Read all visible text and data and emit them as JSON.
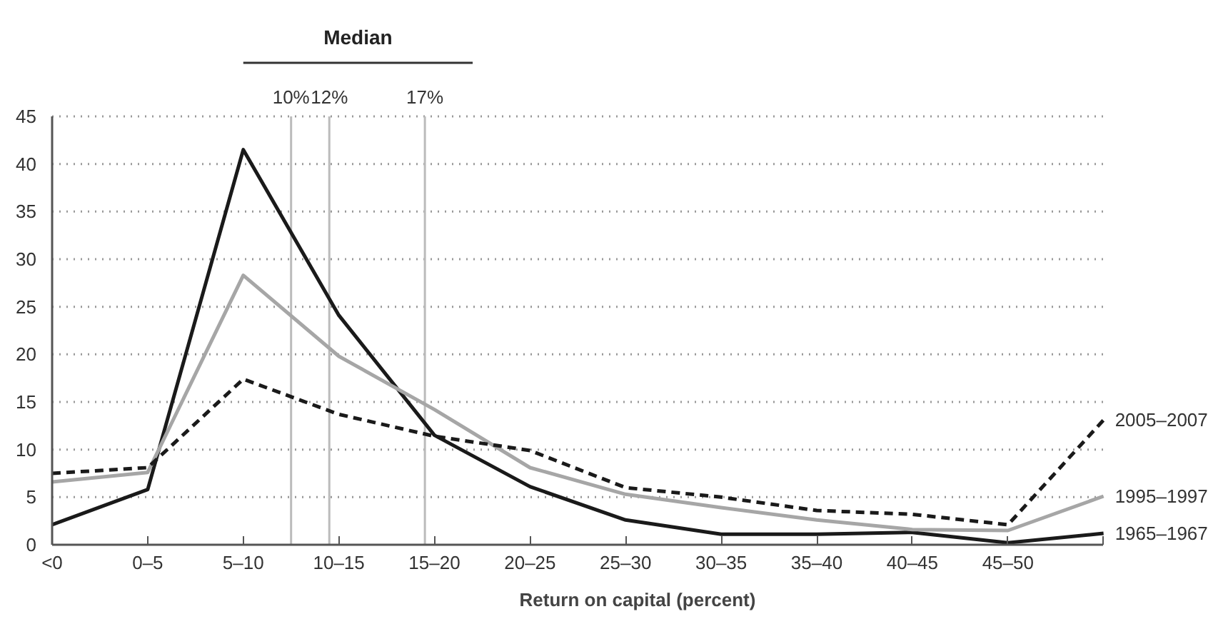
{
  "chart_data": {
    "type": "line",
    "xlabel": "Return on capital (percent)",
    "annotations": [
      "Median",
      "10%",
      "12%",
      "17%"
    ],
    "categories": [
      "<0",
      "0–5",
      "5–10",
      "10–15",
      "15–20",
      "20–25",
      "25–30",
      "30–35",
      "35–40",
      "40–45",
      "45–50",
      null
    ],
    "ylim": [
      0,
      45
    ],
    "yticks": [
      0,
      5,
      10,
      15,
      20,
      25,
      30,
      35,
      40,
      45
    ],
    "grid": "y",
    "series": [
      {
        "name": "1965–1967",
        "color": "#1a1a1a",
        "line_style": "solid",
        "values": [
          2.1,
          5.8,
          41.5,
          24.1,
          11.5,
          6.1,
          2.6,
          1.1,
          1.1,
          1.3,
          0.2,
          1.2
        ]
      },
      {
        "name": "1995–1997",
        "color": "#a6a6a6",
        "line_style": "solid",
        "values": [
          6.6,
          7.6,
          28.3,
          19.8,
          14.2,
          8.1,
          5.3,
          3.9,
          2.6,
          1.6,
          1.5,
          5.1
        ]
      },
      {
        "name": "2005–2007",
        "color": "#1a1a1a",
        "line_style": "dashed",
        "values": [
          7.5,
          8.1,
          17.4,
          13.7,
          11.4,
          9.9,
          6.0,
          5.0,
          3.6,
          3.2,
          2.1,
          13.1
        ]
      }
    ]
  }
}
